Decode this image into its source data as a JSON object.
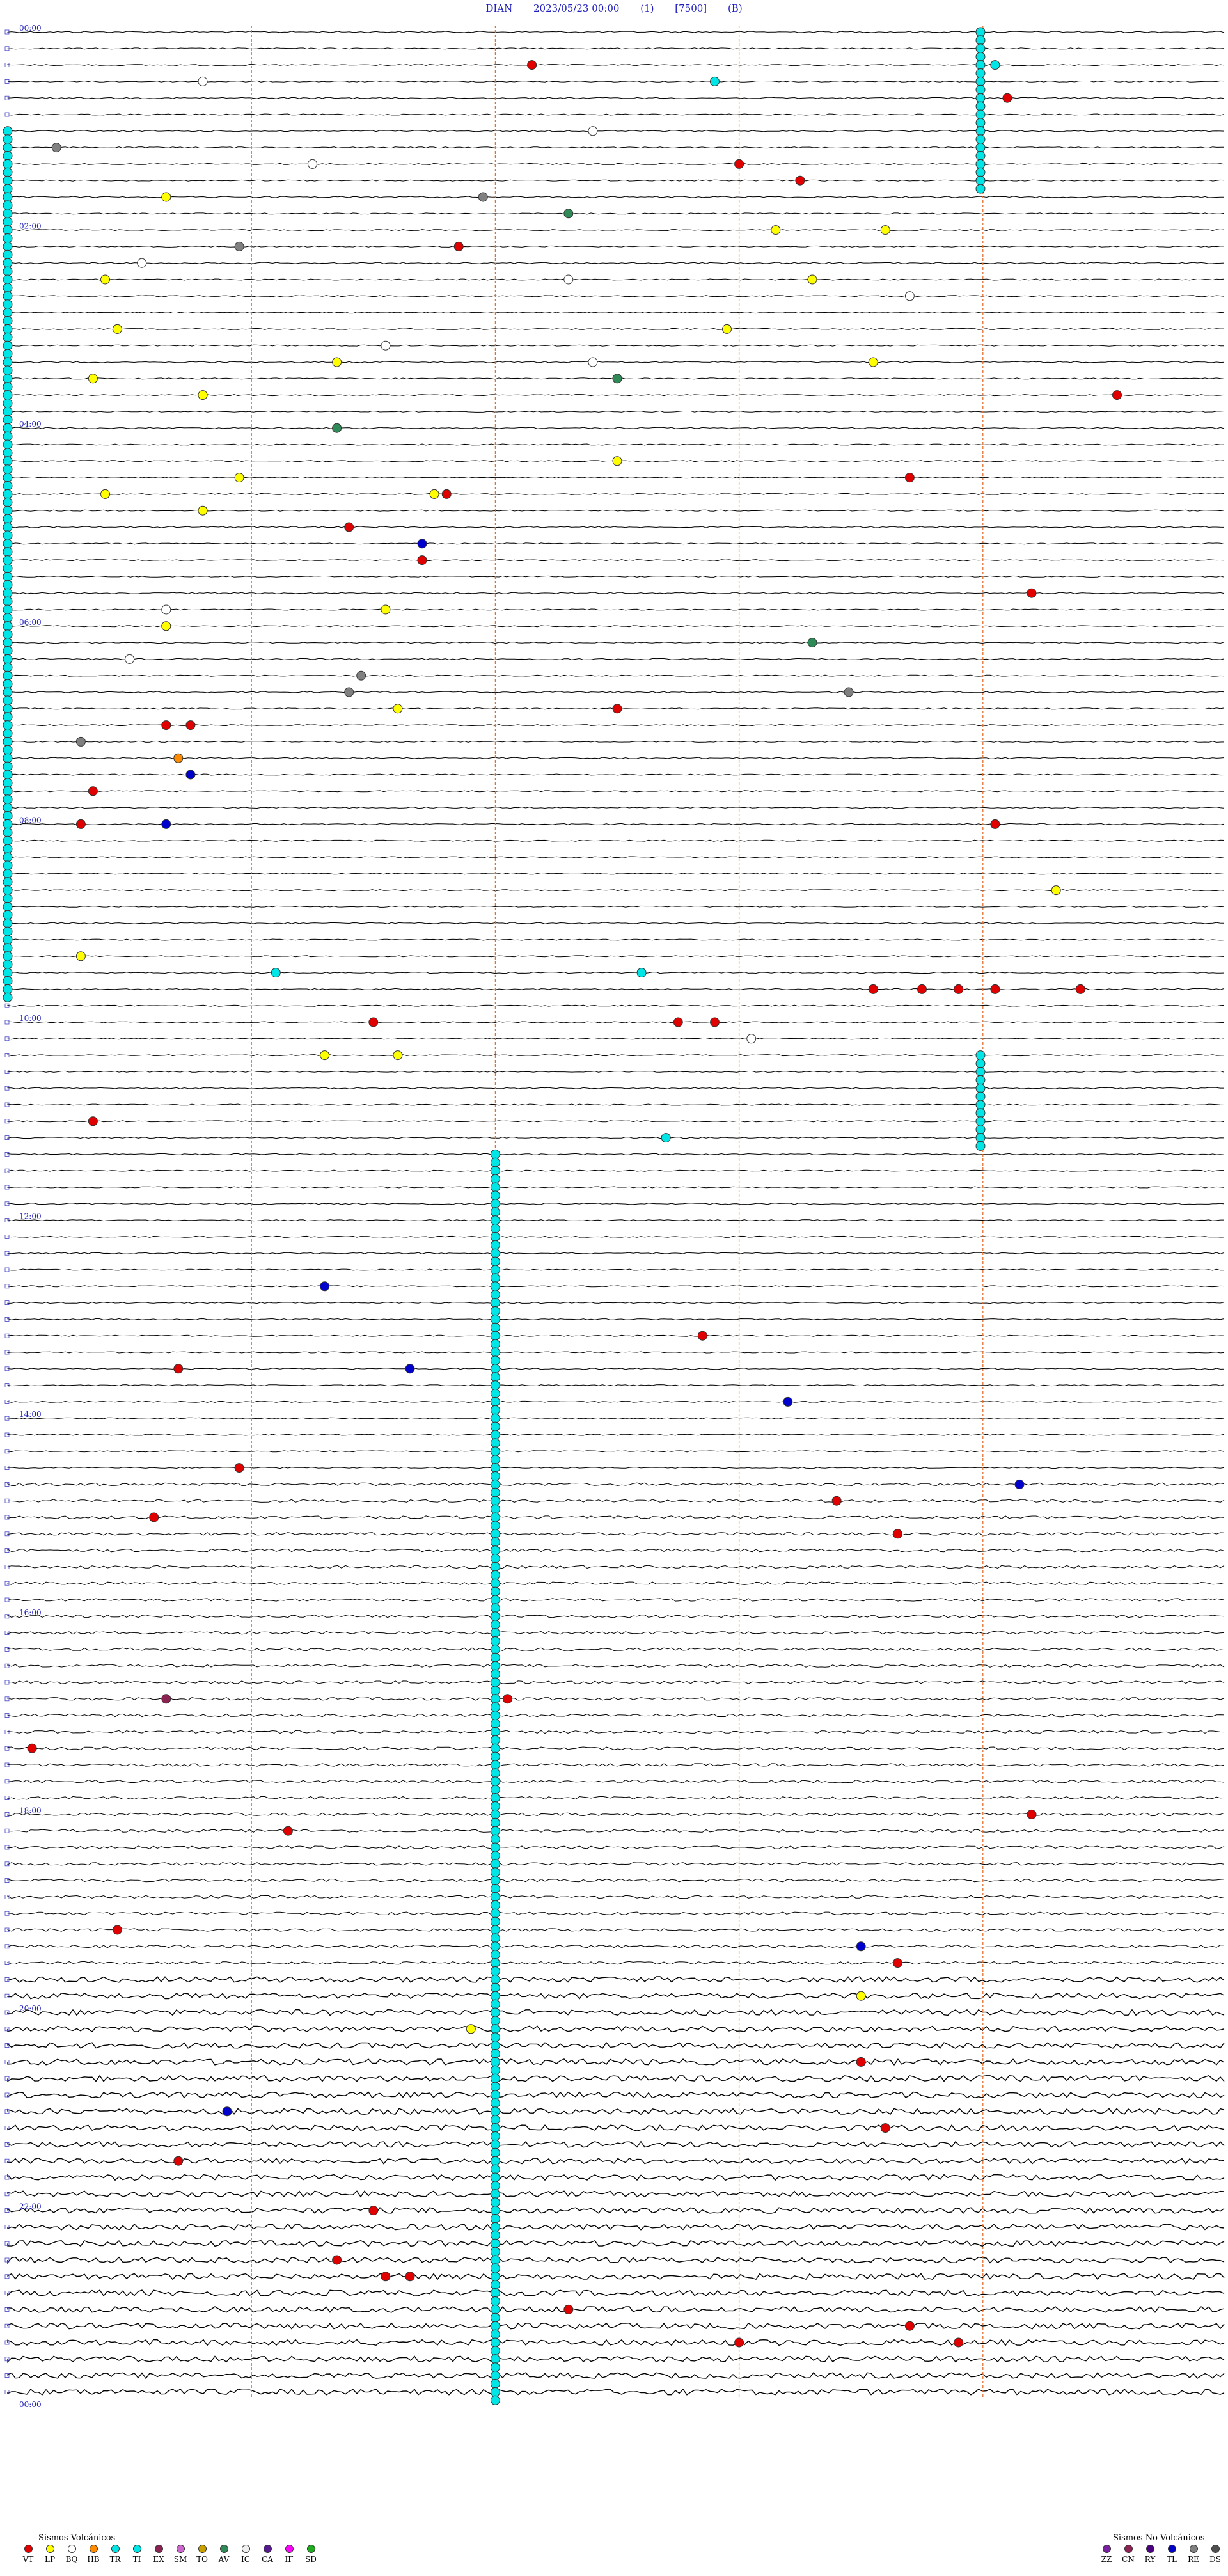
{
  "header": {
    "station": "DIAN",
    "datetime": "2023/05/23 00:00",
    "flag1": "(1)",
    "gain": "[7500]",
    "flag2": "(B)"
  },
  "chart_data": {
    "type": "helicorder",
    "time_labels": [
      "00:00",
      "02:00",
      "04:00",
      "06:00",
      "08:00",
      "10:00",
      "12:00",
      "14:00",
      "16:00",
      "18:00",
      "20:00",
      "22:00",
      "00:00"
    ],
    "line_count": 144,
    "minutes_per_line": 10,
    "vertical_markers_minutes": [
      2,
      4,
      6,
      8
    ],
    "colors": {
      "VT": "#e00000",
      "LP": "#ffff00",
      "BQ": "#ffffff",
      "HB": "#ff8c00",
      "TR": "#00e5e5",
      "TI": "#00e5e5",
      "EX": "#8b2252",
      "SM": "#cc66cc",
      "TO": "#c8a000",
      "AV": "#2e8b57",
      "IC": "#f0f0f0",
      "CA": "#551a8b",
      "IF": "#ff00ff",
      "SD": "#22aa22",
      "ZZ": "#7a1fa2",
      "CN": "#8b2252",
      "RY": "#4b0082",
      "TL": "#0000cd",
      "RE": "#808080",
      "DS": "#505050"
    },
    "events": [
      {
        "line": 2,
        "minute": 4.3,
        "type": "VT"
      },
      {
        "line": 2,
        "minute": 8.1,
        "type": "TR"
      },
      {
        "line": 3,
        "minute": 1.6,
        "type": "BQ"
      },
      {
        "line": 3,
        "minute": 5.8,
        "type": "TR"
      },
      {
        "line": 4,
        "minute": 8.2,
        "type": "VT"
      },
      {
        "line": 6,
        "minute": 4.8,
        "type": "BQ"
      },
      {
        "line": 7,
        "minute": 0.4,
        "type": "RE"
      },
      {
        "line": 8,
        "minute": 2.5,
        "type": "BQ"
      },
      {
        "line": 8,
        "minute": 6.0,
        "type": "VT"
      },
      {
        "line": 9,
        "minute": 6.5,
        "type": "VT"
      },
      {
        "line": 10,
        "minute": 1.3,
        "type": "LP"
      },
      {
        "line": 10,
        "minute": 3.9,
        "type": "RE"
      },
      {
        "line": 11,
        "minute": 4.6,
        "type": "AV"
      },
      {
        "line": 12,
        "minute": 6.3,
        "type": "LP"
      },
      {
        "line": 12,
        "minute": 7.2,
        "type": "LP"
      },
      {
        "line": 13,
        "minute": 1.9,
        "type": "RE"
      },
      {
        "line": 13,
        "minute": 3.7,
        "type": "VT"
      },
      {
        "line": 14,
        "minute": 1.1,
        "type": "BQ"
      },
      {
        "line": 15,
        "minute": 0.8,
        "type": "LP"
      },
      {
        "line": 15,
        "minute": 4.6,
        "type": "BQ"
      },
      {
        "line": 15,
        "minute": 6.6,
        "type": "LP"
      },
      {
        "line": 16,
        "minute": 7.4,
        "type": "BQ"
      },
      {
        "line": 18,
        "minute": 0.9,
        "type": "LP"
      },
      {
        "line": 18,
        "minute": 5.9,
        "type": "LP"
      },
      {
        "line": 19,
        "minute": 3.1,
        "type": "BQ"
      },
      {
        "line": 20,
        "minute": 2.7,
        "type": "LP"
      },
      {
        "line": 20,
        "minute": 4.8,
        "type": "BQ"
      },
      {
        "line": 20,
        "minute": 7.1,
        "type": "LP"
      },
      {
        "line": 21,
        "minute": 0.7,
        "type": "LP"
      },
      {
        "line": 21,
        "minute": 5.0,
        "type": "AV"
      },
      {
        "line": 22,
        "minute": 1.6,
        "type": "LP"
      },
      {
        "line": 22,
        "minute": 9.1,
        "type": "VT"
      },
      {
        "line": 24,
        "minute": 2.7,
        "type": "AV"
      },
      {
        "line": 26,
        "minute": 5.0,
        "type": "LP"
      },
      {
        "line": 27,
        "minute": 7.4,
        "type": "VT"
      },
      {
        "line": 27,
        "minute": 1.9,
        "type": "LP"
      },
      {
        "line": 28,
        "minute": 0.8,
        "type": "LP"
      },
      {
        "line": 28,
        "minute": 3.5,
        "type": "LP"
      },
      {
        "line": 28,
        "minute": 3.6,
        "type": "VT"
      },
      {
        "line": 29,
        "minute": 1.6,
        "type": "LP"
      },
      {
        "line": 30,
        "minute": 2.8,
        "type": "VT"
      },
      {
        "line": 31,
        "minute": 3.4,
        "type": "TL"
      },
      {
        "line": 32,
        "minute": 3.4,
        "type": "VT"
      },
      {
        "line": 34,
        "minute": 8.4,
        "type": "VT"
      },
      {
        "line": 35,
        "minute": 1.3,
        "type": "BQ"
      },
      {
        "line": 35,
        "minute": 3.1,
        "type": "LP"
      },
      {
        "line": 36,
        "minute": 1.3,
        "type": "LP"
      },
      {
        "line": 37,
        "minute": 6.6,
        "type": "AV"
      },
      {
        "line": 38,
        "minute": 1.0,
        "type": "BQ"
      },
      {
        "line": 39,
        "minute": 2.9,
        "type": "RE"
      },
      {
        "line": 40,
        "minute": 2.8,
        "type": "RE"
      },
      {
        "line": 40,
        "minute": 6.9,
        "type": "RE"
      },
      {
        "line": 41,
        "minute": 5.0,
        "type": "VT"
      },
      {
        "line": 41,
        "minute": 3.2,
        "type": "LP"
      },
      {
        "line": 42,
        "minute": 1.3,
        "type": "VT"
      },
      {
        "line": 42,
        "minute": 1.5,
        "type": "VT"
      },
      {
        "line": 43,
        "minute": 0.6,
        "type": "RE"
      },
      {
        "line": 44,
        "minute": 1.4,
        "type": "HB"
      },
      {
        "line": 45,
        "minute": 1.5,
        "type": "TL"
      },
      {
        "line": 46,
        "minute": 0.7,
        "type": "VT"
      },
      {
        "line": 48,
        "minute": 0.6,
        "type": "VT"
      },
      {
        "line": 48,
        "minute": 1.3,
        "type": "TL"
      },
      {
        "line": 48,
        "minute": 8.1,
        "type": "VT"
      },
      {
        "line": 52,
        "minute": 8.6,
        "type": "LP"
      },
      {
        "line": 56,
        "minute": 0.6,
        "type": "LP"
      },
      {
        "line": 57,
        "minute": 2.2,
        "type": "TR"
      },
      {
        "line": 57,
        "minute": 5.2,
        "type": "TR"
      },
      {
        "line": 58,
        "minute": 7.1,
        "type": "VT"
      },
      {
        "line": 58,
        "minute": 7.5,
        "type": "VT"
      },
      {
        "line": 58,
        "minute": 7.8,
        "type": "VT"
      },
      {
        "line": 58,
        "minute": 8.1,
        "type": "VT"
      },
      {
        "line": 58,
        "minute": 8.8,
        "type": "VT"
      },
      {
        "line": 60,
        "minute": 3.0,
        "type": "VT"
      },
      {
        "line": 60,
        "minute": 5.5,
        "type": "VT"
      },
      {
        "line": 60,
        "minute": 5.8,
        "type": "VT"
      },
      {
        "line": 61,
        "minute": 6.1,
        "type": "BQ"
      },
      {
        "line": 62,
        "minute": 2.6,
        "type": "LP"
      },
      {
        "line": 62,
        "minute": 3.2,
        "type": "LP"
      },
      {
        "line": 66,
        "minute": 0.7,
        "type": "VT"
      },
      {
        "line": 67,
        "minute": 5.4,
        "type": "TR"
      },
      {
        "line": 76,
        "minute": 2.6,
        "type": "TL"
      },
      {
        "line": 79,
        "minute": 5.7,
        "type": "VT"
      },
      {
        "line": 81,
        "minute": 1.4,
        "type": "VT"
      },
      {
        "line": 81,
        "minute": 3.3,
        "type": "TL"
      },
      {
        "line": 83,
        "minute": 6.4,
        "type": "TL"
      },
      {
        "line": 87,
        "minute": 1.9,
        "type": "VT"
      },
      {
        "line": 88,
        "minute": 8.3,
        "type": "TL"
      },
      {
        "line": 89,
        "minute": 6.8,
        "type": "VT"
      },
      {
        "line": 90,
        "minute": 1.2,
        "type": "VT"
      },
      {
        "line": 91,
        "minute": 7.3,
        "type": "VT"
      },
      {
        "line": 101,
        "minute": 1.3,
        "type": "EX"
      },
      {
        "line": 101,
        "minute": 4.1,
        "type": "VT"
      },
      {
        "line": 104,
        "minute": 0.2,
        "type": "VT"
      },
      {
        "line": 108,
        "minute": 8.4,
        "type": "VT"
      },
      {
        "line": 109,
        "minute": 2.3,
        "type": "VT"
      },
      {
        "line": 115,
        "minute": 0.9,
        "type": "VT"
      },
      {
        "line": 116,
        "minute": 7.0,
        "type": "TL"
      },
      {
        "line": 117,
        "minute": 7.3,
        "type": "VT"
      },
      {
        "line": 119,
        "minute": 7.0,
        "type": "LP"
      },
      {
        "line": 121,
        "minute": 3.8,
        "type": "LP"
      },
      {
        "line": 123,
        "minute": 7.0,
        "type": "VT"
      },
      {
        "line": 126,
        "minute": 1.8,
        "type": "TL"
      },
      {
        "line": 127,
        "minute": 7.2,
        "type": "VT"
      },
      {
        "line": 129,
        "minute": 1.4,
        "type": "VT"
      },
      {
        "line": 132,
        "minute": 3.0,
        "type": "VT"
      },
      {
        "line": 135,
        "minute": 2.7,
        "type": "VT"
      },
      {
        "line": 136,
        "minute": 3.1,
        "type": "VT"
      },
      {
        "line": 136,
        "minute": 3.3,
        "type": "VT"
      },
      {
        "line": 138,
        "minute": 4.6,
        "type": "VT"
      },
      {
        "line": 139,
        "minute": 7.4,
        "type": "VT"
      },
      {
        "line": 140,
        "minute": 7.8,
        "type": "VT"
      },
      {
        "line": 140,
        "minute": 6.0,
        "type": "VT"
      }
    ]
  },
  "legend": {
    "volcanic_title": "Sismos Volcánicos",
    "volcanic": [
      {
        "code": "VT",
        "color": "#e00000"
      },
      {
        "code": "LP",
        "color": "#ffff00"
      },
      {
        "code": "BQ",
        "color": "#ffffff"
      },
      {
        "code": "HB",
        "color": "#ff8c00"
      },
      {
        "code": "TR",
        "color": "#00e5e5"
      },
      {
        "code": "TI",
        "color": "#00e5e5"
      },
      {
        "code": "EX",
        "color": "#8b2252"
      },
      {
        "code": "SM",
        "color": "#cc66cc"
      },
      {
        "code": "TO",
        "color": "#c8a000"
      },
      {
        "code": "AV",
        "color": "#2e8b57"
      },
      {
        "code": "IC",
        "color": "#f0f0f0"
      },
      {
        "code": "CA",
        "color": "#551a8b"
      },
      {
        "code": "IF",
        "color": "#ff00ff"
      },
      {
        "code": "SD",
        "color": "#22aa22"
      }
    ],
    "nonvolcanic_title": "Sismos No Volcánicos",
    "nonvolcanic": [
      {
        "code": "ZZ",
        "color": "#7a1fa2"
      },
      {
        "code": "CN",
        "color": "#8b2252"
      },
      {
        "code": "RY",
        "color": "#4b0082"
      },
      {
        "code": "TL",
        "color": "#0000cd"
      },
      {
        "code": "RE",
        "color": "#808080"
      },
      {
        "code": "DS",
        "color": "#505050"
      }
    ]
  }
}
